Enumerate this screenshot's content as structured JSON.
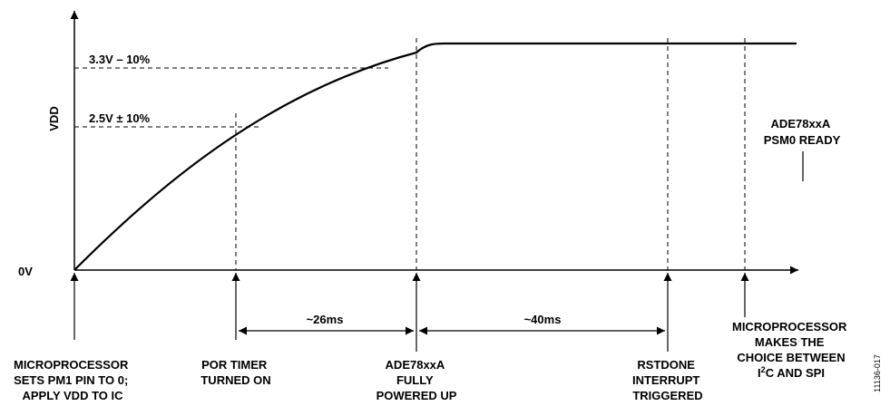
{
  "axis": {
    "y_label": "VDD",
    "origin_label": "0V"
  },
  "thresholds": {
    "upper": "3.3V – 10%",
    "lower": "2.5V ± 10%"
  },
  "status": {
    "line1": "ADE78xxA",
    "line2": "PSM0 READY"
  },
  "intervals": {
    "first": "~26ms",
    "second": "~40ms"
  },
  "events": {
    "start": [
      "MICROPROCESSOR",
      "SETS PM1 PIN TO 0;",
      "APPLY VDD TO IC"
    ],
    "por": [
      "POR TIMER",
      "TURNED ON"
    ],
    "powered": [
      "ADE78xxA",
      "FULLY",
      "POWERED UP"
    ],
    "rstdone": [
      "RSTDONE",
      "INTERRUPT",
      "TRIGGERED"
    ],
    "choice_lines": [
      "MICROPROCESSOR",
      "MAKES THE",
      "CHOICE BETWEEN"
    ],
    "choice_last": {
      "prefix": "I",
      "sup": "2",
      "suffix": "C AND SPI"
    }
  },
  "figure_id": "11136-017"
}
